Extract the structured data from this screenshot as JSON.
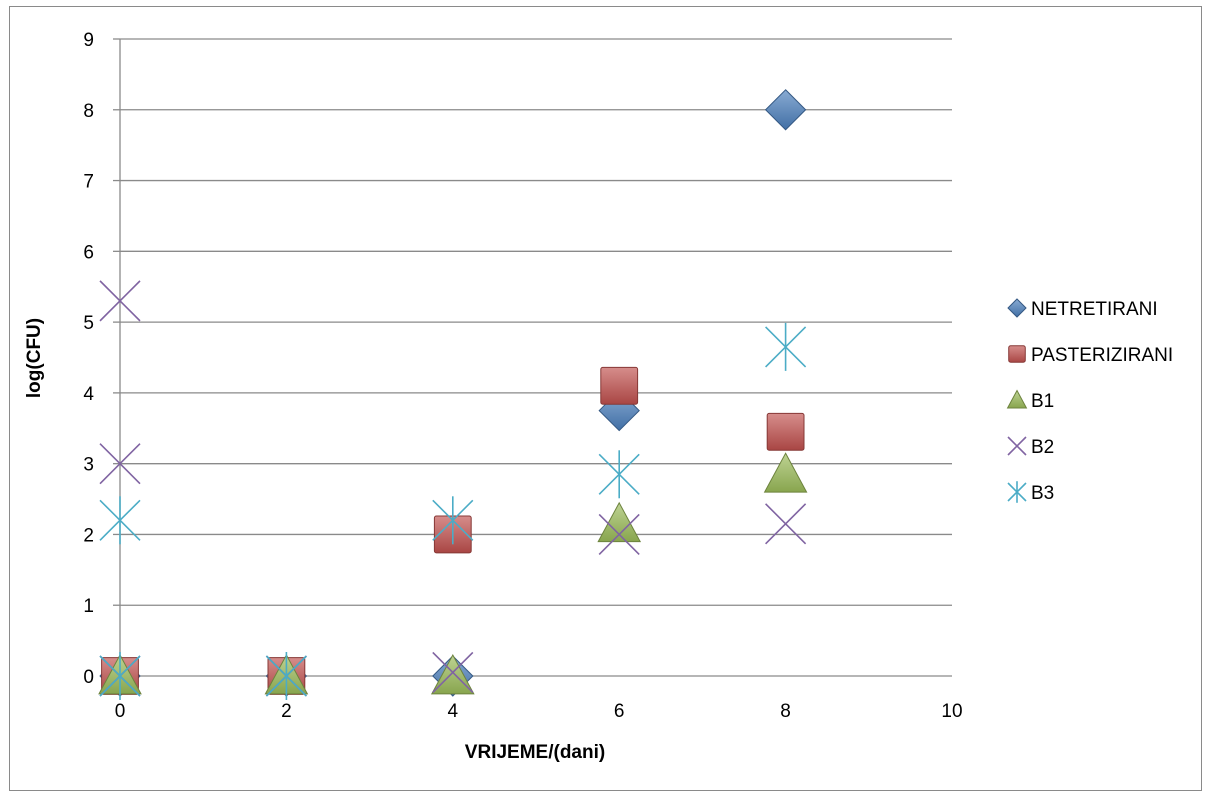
{
  "chart_data": {
    "type": "scatter",
    "title": "",
    "xlabel": "VRIJEME/(dani)",
    "ylabel": "log(CFU)",
    "xlim": [
      0,
      10
    ],
    "ylim": [
      0,
      9
    ],
    "x_ticks": [
      0,
      2,
      4,
      6,
      8,
      10
    ],
    "y_ticks": [
      0,
      1,
      2,
      3,
      4,
      5,
      6,
      7,
      8,
      9
    ],
    "grid": "horizontal",
    "legend_position": "right",
    "series": [
      {
        "name": "NETRETIRANI",
        "marker": "diamond",
        "color": "#4a7ebb",
        "points": [
          [
            0,
            0
          ],
          [
            2,
            0
          ],
          [
            4,
            0
          ],
          [
            6,
            3.75
          ],
          [
            8,
            8.0
          ]
        ]
      },
      {
        "name": "PASTERIZIRANI",
        "marker": "square",
        "color": "#c0504d",
        "points": [
          [
            0,
            0
          ],
          [
            2,
            0
          ],
          [
            4,
            2.0
          ],
          [
            6,
            4.1
          ],
          [
            8,
            3.45
          ]
        ]
      },
      {
        "name": "B1",
        "marker": "triangle",
        "color": "#9bbb59",
        "points": [
          [
            0,
            0
          ],
          [
            2,
            0
          ],
          [
            4,
            0
          ],
          [
            6,
            2.15
          ],
          [
            8,
            2.85
          ]
        ]
      },
      {
        "name": "B2",
        "marker": "x",
        "color": "#8064a2",
        "points": [
          [
            0,
            5.3
          ],
          [
            0,
            3.0
          ],
          [
            0,
            0
          ],
          [
            2,
            0
          ],
          [
            4,
            0.05
          ],
          [
            6,
            2.0
          ],
          [
            8,
            2.15
          ]
        ]
      },
      {
        "name": "B3",
        "marker": "star",
        "color": "#4bacc6",
        "points": [
          [
            0,
            2.2
          ],
          [
            0,
            0
          ],
          [
            2,
            0
          ],
          [
            4,
            2.2
          ],
          [
            6,
            2.85
          ],
          [
            8,
            4.65
          ]
        ]
      }
    ]
  }
}
